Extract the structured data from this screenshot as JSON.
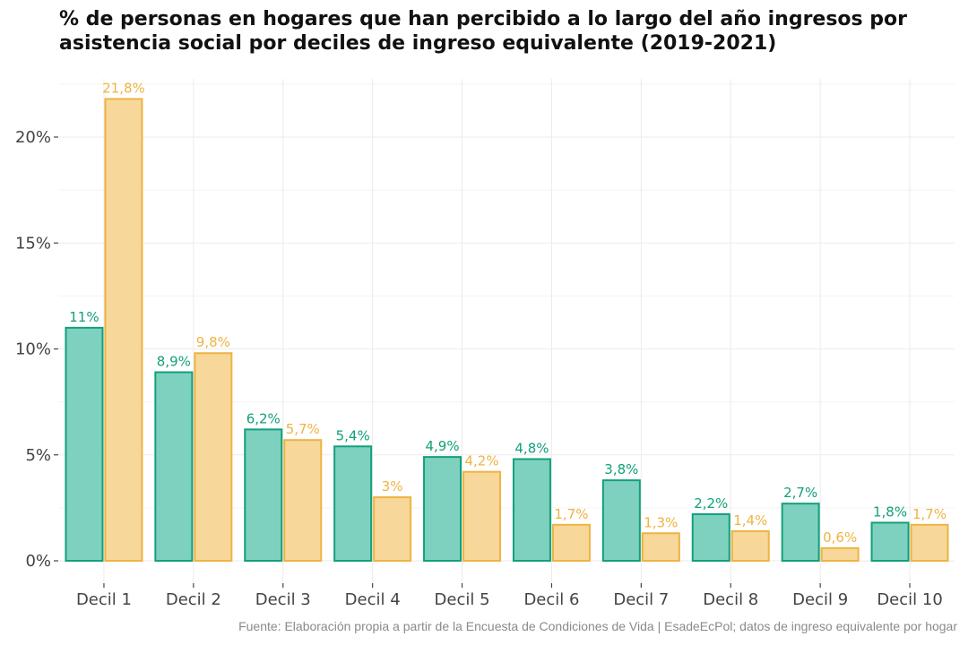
{
  "chart_data": {
    "type": "bar",
    "title_lines": [
      "% de personas en hogares que han percibido a lo largo del año ingresos por",
      "asistencia social por deciles de ingreso equivalente (2019-2021)"
    ],
    "categories": [
      "Decil 1",
      "Decil 2",
      "Decil 3",
      "Decil 4",
      "Decil 5",
      "Decil 6",
      "Decil 7",
      "Decil 8",
      "Decil 9",
      "Decil 10"
    ],
    "series": [
      {
        "values": [
          11,
          8.9,
          6.2,
          5.4,
          4.9,
          4.8,
          3.8,
          2.2,
          2.7,
          1.8
        ],
        "labels": [
          "11%",
          "8,9%",
          "6,2%",
          "5,4%",
          "4,9%",
          "4,8%",
          "3,8%",
          "2,2%",
          "2,7%",
          "1,8%"
        ],
        "fill": "#7fd1bf",
        "stroke": "#12a07b",
        "label_color": "#12a07b"
      },
      {
        "values": [
          21.8,
          9.8,
          5.7,
          3.0,
          4.2,
          1.7,
          1.3,
          1.4,
          0.6,
          1.7
        ],
        "labels": [
          "21,8%",
          "9,8%",
          "5,7%",
          "3%",
          "4,2%",
          "1,7%",
          "1,3%",
          "1,4%",
          "0,6%",
          "1,7%"
        ],
        "fill": "#f7d79a",
        "stroke": "#eeb443",
        "label_color": "#eeb443"
      }
    ],
    "y_ticks": [
      0,
      5,
      10,
      15,
      20
    ],
    "y_tick_labels": [
      "0%",
      "5%",
      "10%",
      "15%",
      "20%"
    ],
    "ylim": [
      0,
      22.5
    ],
    "grid": true,
    "legend": "none"
  },
  "caption": "Fuente: Elaboración propia a partir de la Encuesta de Condiciones de Vida | EsadeEcPol; datos de ingreso equivalente por hogar"
}
